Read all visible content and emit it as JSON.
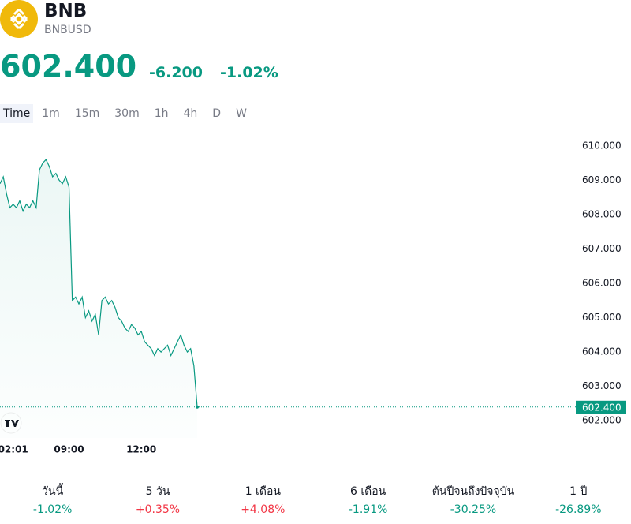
{
  "header": {
    "symbol": "BNB",
    "ticker": "BNBUSD"
  },
  "price": {
    "value": "602.400",
    "change": "-6.200",
    "change_percent": "-1.02%"
  },
  "tabs": [
    "Time",
    "1m",
    "15m",
    "30m",
    "1h",
    "4h",
    "D",
    "W"
  ],
  "chart_data": {
    "type": "line",
    "color": "#089981",
    "categories": [
      null,
      null,
      null,
      null,
      "02:01",
      null,
      null,
      null,
      null,
      null,
      null,
      null,
      null,
      null,
      null,
      null,
      null,
      null,
      null,
      null,
      null,
      "09:00",
      null,
      null,
      null,
      null,
      null,
      null,
      null,
      null,
      null,
      null,
      null,
      null,
      null,
      null,
      null,
      null,
      null,
      null,
      null,
      null,
      null,
      "12:00",
      null,
      null,
      null,
      null,
      null,
      null,
      null,
      null,
      null,
      null,
      null,
      null,
      null,
      null,
      null,
      null,
      null
    ],
    "values": [
      608.9,
      609.1,
      608.6,
      608.2,
      608.3,
      608.2,
      608.4,
      608.1,
      608.3,
      608.2,
      608.4,
      608.2,
      609.3,
      609.5,
      609.6,
      609.4,
      609.1,
      609.2,
      609.0,
      608.9,
      609.1,
      608.8,
      605.5,
      605.6,
      605.4,
      605.6,
      605.0,
      605.2,
      604.9,
      605.1,
      604.5,
      605.5,
      605.6,
      605.4,
      605.5,
      605.3,
      605.0,
      604.9,
      604.7,
      604.6,
      604.8,
      604.7,
      604.5,
      604.6,
      604.3,
      604.2,
      604.1,
      603.9,
      604.1,
      604.0,
      604.1,
      604.2,
      603.9,
      604.1,
      604.3,
      604.5,
      604.2,
      604.0,
      604.1,
      603.6,
      602.4
    ],
    "ylim": [
      601.5,
      610.5
    ],
    "yticks": [
      {
        "value": 602,
        "label": "602.000"
      },
      {
        "value": 603,
        "label": "603.000"
      },
      {
        "value": 604,
        "label": "604.000"
      },
      {
        "value": 605,
        "label": "605.000"
      },
      {
        "value": 606,
        "label": "606.000"
      },
      {
        "value": 607,
        "label": "607.000"
      },
      {
        "value": 608,
        "label": "608.000"
      },
      {
        "value": 609,
        "label": "609.000"
      },
      {
        "value": 610,
        "label": "610.000"
      }
    ]
  },
  "performance": [
    {
      "label": "วันนี้",
      "value": "-1.02%",
      "color": "#089981"
    },
    {
      "label": "5 วัน",
      "value": "+0.35%",
      "color": "#f23645"
    },
    {
      "label": "1 เดือน",
      "value": "+4.08%",
      "color": "#f23645"
    },
    {
      "label": "6 เดือน",
      "value": "-1.91%",
      "color": "#089981"
    },
    {
      "label": "ต้นปีจนถึงปัจจุบัน",
      "value": "-30.25%",
      "color": "#089981"
    },
    {
      "label": "1 ปี",
      "value": "-26.89%",
      "color": "#089981"
    }
  ]
}
